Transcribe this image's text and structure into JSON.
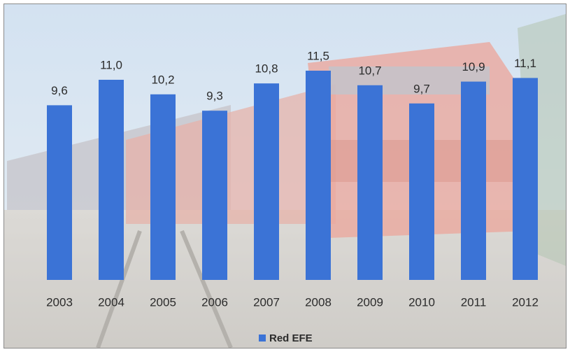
{
  "chart_data": {
    "type": "bar",
    "categories": [
      "2003",
      "2004",
      "2005",
      "2006",
      "2007",
      "2008",
      "2009",
      "2010",
      "2011",
      "2012"
    ],
    "series": [
      {
        "name": "Red EFE",
        "color": "#3b73d6",
        "values": [
          9.6,
          11.0,
          10.2,
          9.3,
          10.8,
          11.5,
          10.7,
          9.7,
          10.9,
          11.1
        ],
        "value_labels": [
          "9,6",
          "11,0",
          "10,2",
          "9,3",
          "10,8",
          "11,5",
          "10,7",
          "9,7",
          "10,9",
          "11,1"
        ]
      }
    ],
    "ylim": [
      0,
      13
    ],
    "legend": "bottom"
  }
}
